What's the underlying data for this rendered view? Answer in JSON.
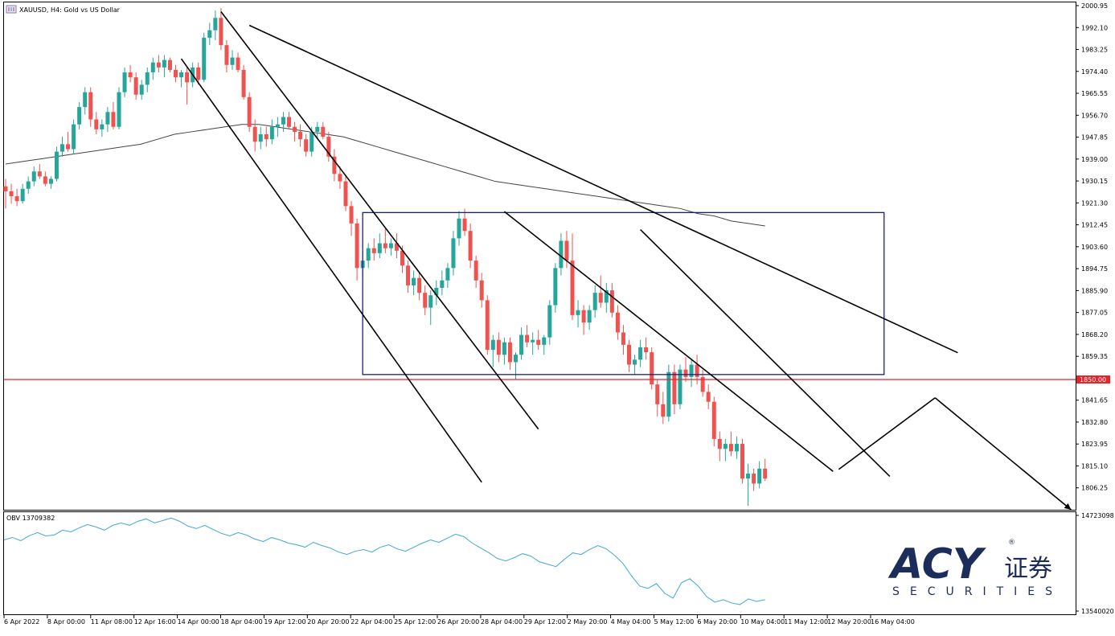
{
  "header": {
    "symbol": "XAUUSD",
    "timeframe": "H4:",
    "description": "Gold vs US Dollar"
  },
  "indicator": {
    "name": "OBV",
    "value": "13709382",
    "axis_top": "14723098",
    "axis_bottom": "13540020"
  },
  "price_axis": {
    "ticks": [
      "2000.95",
      "1992.10",
      "1983.25",
      "1974.40",
      "1965.55",
      "1956.70",
      "1947.85",
      "1939.00",
      "1930.15",
      "1921.30",
      "1912.45",
      "1903.60",
      "1894.75",
      "1885.90",
      "1877.05",
      "1868.20",
      "1859.35",
      "1841.65",
      "1832.80",
      "1823.95",
      "1815.10",
      "1806.25"
    ],
    "level_label": "1850.00",
    "level_color": "#e3242b"
  },
  "time_axis": {
    "labels": [
      "6 Apr 2022",
      "8 Apr 00:00",
      "11 Apr 08:00",
      "12 Apr 16:00",
      "14 Apr 00:00",
      "18 Apr 04:00",
      "19 Apr 12:00",
      "20 Apr 20:00",
      "22 Apr 04:00",
      "25 Apr 12:00",
      "26 Apr 20:00",
      "28 Apr 04:00",
      "29 Apr 12:00",
      "2 May 20:00",
      "4 May 04:00",
      "5 May 12:00",
      "6 May 20:00",
      "10 May 04:00",
      "11 May 12:00",
      "12 May 20:00",
      "16 May 04:00"
    ]
  },
  "logo": {
    "brand": "ACY",
    "chinese": "证券",
    "sub": "SECURITIES",
    "registered": "®",
    "color": "#1b2d5a"
  },
  "colors": {
    "bull": "#26a69a",
    "bear": "#ef5350",
    "obv": "#3fa9d6",
    "box": "#1b1f7a",
    "ma": "#444444"
  },
  "chart_data": [
    {
      "type": "candlestick",
      "symbol": "XAUUSD",
      "timeframe": "H4",
      "ylim": [
        1797.4,
        2000.95
      ],
      "horizontal_level": 1850.0,
      "candles": [
        {
          "o": 1928,
          "h": 1931,
          "l": 1919,
          "c": 1926
        },
        {
          "o": 1926,
          "h": 1929,
          "l": 1921,
          "c": 1924
        },
        {
          "o": 1924,
          "h": 1927,
          "l": 1920,
          "c": 1922
        },
        {
          "o": 1922,
          "h": 1929,
          "l": 1921,
          "c": 1927
        },
        {
          "o": 1927,
          "h": 1932,
          "l": 1925,
          "c": 1930
        },
        {
          "o": 1930,
          "h": 1936,
          "l": 1928,
          "c": 1934
        },
        {
          "o": 1934,
          "h": 1937,
          "l": 1931,
          "c": 1932
        },
        {
          "o": 1932,
          "h": 1934,
          "l": 1928,
          "c": 1929
        },
        {
          "o": 1929,
          "h": 1932,
          "l": 1927,
          "c": 1931
        },
        {
          "o": 1931,
          "h": 1944,
          "l": 1930,
          "c": 1942
        },
        {
          "o": 1942,
          "h": 1948,
          "l": 1940,
          "c": 1945
        },
        {
          "o": 1945,
          "h": 1950,
          "l": 1942,
          "c": 1943
        },
        {
          "o": 1943,
          "h": 1955,
          "l": 1941,
          "c": 1953
        },
        {
          "o": 1953,
          "h": 1962,
          "l": 1951,
          "c": 1960
        },
        {
          "o": 1960,
          "h": 1968,
          "l": 1957,
          "c": 1966
        },
        {
          "o": 1966,
          "h": 1968,
          "l": 1952,
          "c": 1955
        },
        {
          "o": 1955,
          "h": 1958,
          "l": 1949,
          "c": 1951
        },
        {
          "o": 1951,
          "h": 1955,
          "l": 1948,
          "c": 1953
        },
        {
          "o": 1953,
          "h": 1960,
          "l": 1950,
          "c": 1958
        },
        {
          "o": 1958,
          "h": 1962,
          "l": 1951,
          "c": 1952
        },
        {
          "o": 1952,
          "h": 1968,
          "l": 1951,
          "c": 1966
        },
        {
          "o": 1966,
          "h": 1976,
          "l": 1964,
          "c": 1974
        },
        {
          "o": 1974,
          "h": 1977,
          "l": 1970,
          "c": 1972
        },
        {
          "o": 1972,
          "h": 1974,
          "l": 1963,
          "c": 1965
        },
        {
          "o": 1965,
          "h": 1971,
          "l": 1963,
          "c": 1969
        },
        {
          "o": 1969,
          "h": 1976,
          "l": 1966,
          "c": 1974
        },
        {
          "o": 1974,
          "h": 1980,
          "l": 1971,
          "c": 1978
        },
        {
          "o": 1978,
          "h": 1981,
          "l": 1974,
          "c": 1976
        },
        {
          "o": 1976,
          "h": 1981,
          "l": 1972,
          "c": 1979
        },
        {
          "o": 1979,
          "h": 1980,
          "l": 1974,
          "c": 1975
        },
        {
          "o": 1975,
          "h": 1977,
          "l": 1970,
          "c": 1972
        },
        {
          "o": 1972,
          "h": 1975,
          "l": 1968,
          "c": 1974
        },
        {
          "o": 1974,
          "h": 1976,
          "l": 1961,
          "c": 1970
        },
        {
          "o": 1970,
          "h": 1978,
          "l": 1968,
          "c": 1976
        },
        {
          "o": 1976,
          "h": 1978,
          "l": 1969,
          "c": 1971
        },
        {
          "o": 1971,
          "h": 1990,
          "l": 1970,
          "c": 1988
        },
        {
          "o": 1988,
          "h": 1994,
          "l": 1985,
          "c": 1991
        },
        {
          "o": 1991,
          "h": 1999,
          "l": 1987,
          "c": 1996
        },
        {
          "o": 1996,
          "h": 2000,
          "l": 1983,
          "c": 1985
        },
        {
          "o": 1985,
          "h": 1987,
          "l": 1974,
          "c": 1977
        },
        {
          "o": 1977,
          "h": 1983,
          "l": 1975,
          "c": 1980
        },
        {
          "o": 1980,
          "h": 1982,
          "l": 1974,
          "c": 1975
        },
        {
          "o": 1975,
          "h": 1977,
          "l": 1963,
          "c": 1964
        },
        {
          "o": 1964,
          "h": 1966,
          "l": 1950,
          "c": 1952
        },
        {
          "o": 1952,
          "h": 1955,
          "l": 1942,
          "c": 1946
        },
        {
          "o": 1946,
          "h": 1952,
          "l": 1943,
          "c": 1949
        },
        {
          "o": 1949,
          "h": 1952,
          "l": 1944,
          "c": 1947
        },
        {
          "o": 1947,
          "h": 1955,
          "l": 1945,
          "c": 1952
        },
        {
          "o": 1952,
          "h": 1956,
          "l": 1948,
          "c": 1953
        },
        {
          "o": 1953,
          "h": 1958,
          "l": 1950,
          "c": 1956
        },
        {
          "o": 1956,
          "h": 1958,
          "l": 1951,
          "c": 1952
        },
        {
          "o": 1952,
          "h": 1954,
          "l": 1946,
          "c": 1950
        },
        {
          "o": 1950,
          "h": 1953,
          "l": 1944,
          "c": 1947
        },
        {
          "o": 1947,
          "h": 1949,
          "l": 1940,
          "c": 1942
        },
        {
          "o": 1942,
          "h": 1952,
          "l": 1940,
          "c": 1950
        },
        {
          "o": 1950,
          "h": 1954,
          "l": 1947,
          "c": 1952
        },
        {
          "o": 1952,
          "h": 1954,
          "l": 1947,
          "c": 1948
        },
        {
          "o": 1948,
          "h": 1950,
          "l": 1938,
          "c": 1940
        },
        {
          "o": 1940,
          "h": 1943,
          "l": 1930,
          "c": 1933
        },
        {
          "o": 1933,
          "h": 1936,
          "l": 1927,
          "c": 1930
        },
        {
          "o": 1930,
          "h": 1932,
          "l": 1918,
          "c": 1920
        },
        {
          "o": 1920,
          "h": 1922,
          "l": 1908,
          "c": 1913
        },
        {
          "o": 1913,
          "h": 1915,
          "l": 1890,
          "c": 1895
        },
        {
          "o": 1895,
          "h": 1901,
          "l": 1892,
          "c": 1898
        },
        {
          "o": 1898,
          "h": 1905,
          "l": 1895,
          "c": 1903
        },
        {
          "o": 1903,
          "h": 1907,
          "l": 1898,
          "c": 1901
        },
        {
          "o": 1901,
          "h": 1909,
          "l": 1899,
          "c": 1905
        },
        {
          "o": 1905,
          "h": 1911,
          "l": 1901,
          "c": 1903
        },
        {
          "o": 1903,
          "h": 1907,
          "l": 1900,
          "c": 1905
        },
        {
          "o": 1905,
          "h": 1909,
          "l": 1899,
          "c": 1902
        },
        {
          "o": 1902,
          "h": 1904,
          "l": 1893,
          "c": 1896
        },
        {
          "o": 1896,
          "h": 1898,
          "l": 1885,
          "c": 1888
        },
        {
          "o": 1888,
          "h": 1894,
          "l": 1884,
          "c": 1891
        },
        {
          "o": 1891,
          "h": 1893,
          "l": 1882,
          "c": 1885
        },
        {
          "o": 1885,
          "h": 1888,
          "l": 1876,
          "c": 1879
        },
        {
          "o": 1879,
          "h": 1886,
          "l": 1872,
          "c": 1884
        },
        {
          "o": 1884,
          "h": 1890,
          "l": 1880,
          "c": 1887
        },
        {
          "o": 1887,
          "h": 1894,
          "l": 1884,
          "c": 1890
        },
        {
          "o": 1890,
          "h": 1897,
          "l": 1887,
          "c": 1895
        },
        {
          "o": 1895,
          "h": 1910,
          "l": 1892,
          "c": 1907
        },
        {
          "o": 1907,
          "h": 1918,
          "l": 1904,
          "c": 1915
        },
        {
          "o": 1915,
          "h": 1919,
          "l": 1908,
          "c": 1910
        },
        {
          "o": 1910,
          "h": 1913,
          "l": 1895,
          "c": 1898
        },
        {
          "o": 1898,
          "h": 1900,
          "l": 1887,
          "c": 1890
        },
        {
          "o": 1890,
          "h": 1893,
          "l": 1879,
          "c": 1882
        },
        {
          "o": 1882,
          "h": 1884,
          "l": 1860,
          "c": 1862
        },
        {
          "o": 1862,
          "h": 1868,
          "l": 1855,
          "c": 1866
        },
        {
          "o": 1866,
          "h": 1869,
          "l": 1857,
          "c": 1860
        },
        {
          "o": 1860,
          "h": 1867,
          "l": 1856,
          "c": 1865
        },
        {
          "o": 1865,
          "h": 1867,
          "l": 1854,
          "c": 1857
        },
        {
          "o": 1857,
          "h": 1861,
          "l": 1850,
          "c": 1860
        },
        {
          "o": 1860,
          "h": 1871,
          "l": 1858,
          "c": 1868
        },
        {
          "o": 1868,
          "h": 1872,
          "l": 1863,
          "c": 1865
        },
        {
          "o": 1865,
          "h": 1869,
          "l": 1860,
          "c": 1866
        },
        {
          "o": 1866,
          "h": 1870,
          "l": 1862,
          "c": 1864
        },
        {
          "o": 1864,
          "h": 1868,
          "l": 1860,
          "c": 1867
        },
        {
          "o": 1867,
          "h": 1882,
          "l": 1864,
          "c": 1880
        },
        {
          "o": 1880,
          "h": 1897,
          "l": 1877,
          "c": 1895
        },
        {
          "o": 1895,
          "h": 1909,
          "l": 1892,
          "c": 1906
        },
        {
          "o": 1906,
          "h": 1910,
          "l": 1895,
          "c": 1898
        },
        {
          "o": 1898,
          "h": 1909,
          "l": 1874,
          "c": 1876
        },
        {
          "o": 1876,
          "h": 1882,
          "l": 1871,
          "c": 1878
        },
        {
          "o": 1878,
          "h": 1880,
          "l": 1868,
          "c": 1873
        },
        {
          "o": 1873,
          "h": 1880,
          "l": 1870,
          "c": 1878
        },
        {
          "o": 1878,
          "h": 1888,
          "l": 1875,
          "c": 1885
        },
        {
          "o": 1885,
          "h": 1892,
          "l": 1879,
          "c": 1881
        },
        {
          "o": 1881,
          "h": 1889,
          "l": 1877,
          "c": 1886
        },
        {
          "o": 1886,
          "h": 1889,
          "l": 1875,
          "c": 1877
        },
        {
          "o": 1877,
          "h": 1880,
          "l": 1866,
          "c": 1869
        },
        {
          "o": 1869,
          "h": 1872,
          "l": 1860,
          "c": 1864
        },
        {
          "o": 1864,
          "h": 1866,
          "l": 1853,
          "c": 1856
        },
        {
          "o": 1856,
          "h": 1860,
          "l": 1852,
          "c": 1858
        },
        {
          "o": 1858,
          "h": 1866,
          "l": 1855,
          "c": 1863
        },
        {
          "o": 1863,
          "h": 1867,
          "l": 1858,
          "c": 1861
        },
        {
          "o": 1861,
          "h": 1863,
          "l": 1846,
          "c": 1848
        },
        {
          "o": 1848,
          "h": 1850,
          "l": 1835,
          "c": 1840
        },
        {
          "o": 1840,
          "h": 1845,
          "l": 1832,
          "c": 1835
        },
        {
          "o": 1835,
          "h": 1856,
          "l": 1833,
          "c": 1853
        },
        {
          "o": 1853,
          "h": 1856,
          "l": 1836,
          "c": 1840
        },
        {
          "o": 1840,
          "h": 1856,
          "l": 1838,
          "c": 1854
        },
        {
          "o": 1854,
          "h": 1859,
          "l": 1849,
          "c": 1851
        },
        {
          "o": 1851,
          "h": 1858,
          "l": 1847,
          "c": 1856
        },
        {
          "o": 1856,
          "h": 1860,
          "l": 1848,
          "c": 1851
        },
        {
          "o": 1851,
          "h": 1854,
          "l": 1843,
          "c": 1845
        },
        {
          "o": 1845,
          "h": 1848,
          "l": 1838,
          "c": 1841
        },
        {
          "o": 1841,
          "h": 1843,
          "l": 1823,
          "c": 1826
        },
        {
          "o": 1826,
          "h": 1829,
          "l": 1817,
          "c": 1822
        },
        {
          "o": 1822,
          "h": 1826,
          "l": 1817,
          "c": 1824
        },
        {
          "o": 1824,
          "h": 1829,
          "l": 1819,
          "c": 1821
        },
        {
          "o": 1821,
          "h": 1827,
          "l": 1818,
          "c": 1824
        },
        {
          "o": 1824,
          "h": 1826,
          "l": 1808,
          "c": 1810
        },
        {
          "o": 1810,
          "h": 1816,
          "l": 1799,
          "c": 1812
        },
        {
          "o": 1812,
          "h": 1814,
          "l": 1805,
          "c": 1808
        },
        {
          "o": 1808,
          "h": 1817,
          "l": 1806,
          "c": 1814
        },
        {
          "o": 1814,
          "h": 1818,
          "l": 1809,
          "c": 1810
        }
      ],
      "moving_average": [
        1937,
        1938,
        1939,
        1940,
        1941,
        1942,
        1943,
        1944,
        1945,
        1947,
        1949,
        1950,
        1951,
        1952,
        1953,
        1953,
        1952,
        1951,
        1950,
        1949,
        1948,
        1946,
        1944,
        1942,
        1940,
        1938,
        1936,
        1934,
        1932,
        1930,
        1929,
        1928,
        1927,
        1926,
        1925,
        1924,
        1923,
        1922,
        1921,
        1920,
        1919,
        1917,
        1916,
        1914,
        1913,
        1912
      ],
      "drawn_lines": [
        {
          "x": [
            31,
            84
          ],
          "y": [
            1979.5,
            1808.5
          ]
        },
        {
          "x": [
            38,
            94
          ],
          "y": [
            1998.5,
            1830.0
          ]
        },
        {
          "x": [
            43,
            168
          ],
          "y": [
            1993.0,
            1860.8
          ]
        },
        {
          "x": [
            88,
            146
          ],
          "y": [
            1917.8,
            1812.9
          ]
        },
        {
          "x": [
            112,
            156
          ],
          "y": [
            1910.5,
            1810.9
          ]
        },
        {
          "x": [
            147,
            164
          ],
          "y": [
            1813.7,
            1842.6
          ]
        },
        {
          "x": [
            164,
            188
          ],
          "y": [
            1842.6,
            1797.4
          ]
        }
      ],
      "rectangle": {
        "x": [
          63,
          155
        ],
        "y": [
          1852.0,
          1917.4
        ]
      }
    },
    {
      "type": "line",
      "name": "OBV",
      "ylim": [
        13540020,
        14723098
      ],
      "values": [
        14420000,
        14450000,
        14410000,
        14470000,
        14510000,
        14470000,
        14480000,
        14540000,
        14520000,
        14570000,
        14610000,
        14580000,
        14540000,
        14600000,
        14630000,
        14600000,
        14650000,
        14680000,
        14630000,
        14660000,
        14690000,
        14650000,
        14590000,
        14560000,
        14600000,
        14550000,
        14500000,
        14470000,
        14510000,
        14480000,
        14430000,
        14400000,
        14450000,
        14420000,
        14380000,
        14360000,
        14330000,
        14390000,
        14350000,
        14320000,
        14270000,
        14240000,
        14280000,
        14300000,
        14270000,
        14330000,
        14360000,
        14310000,
        14280000,
        14330000,
        14380000,
        14420000,
        14390000,
        14440000,
        14490000,
        14460000,
        14380000,
        14320000,
        14260000,
        14190000,
        14160000,
        14200000,
        14250000,
        14220000,
        14150000,
        14120000,
        14090000,
        14180000,
        14260000,
        14240000,
        14300000,
        14350000,
        14310000,
        14230000,
        14130000,
        13980000,
        13850000,
        13820000,
        13880000,
        13760000,
        13700000,
        13890000,
        13940000,
        13850000,
        13720000,
        13650000,
        13680000,
        13640000,
        13620000,
        13690000,
        13660000,
        13680000
      ]
    }
  ]
}
